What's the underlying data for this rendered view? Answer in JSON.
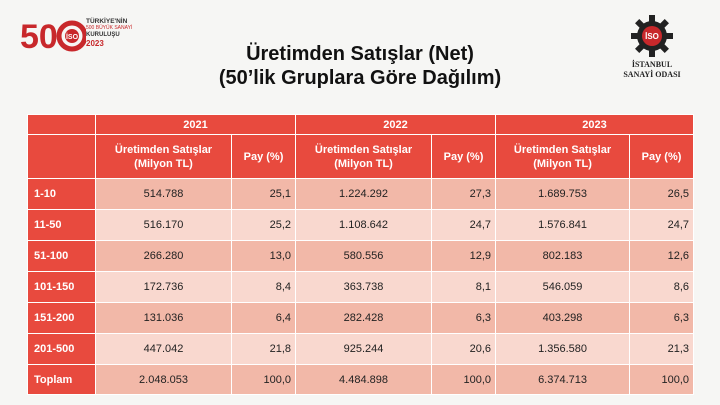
{
  "logo_left": {
    "number": "50",
    "line1": "TÜRKİYE'NİN",
    "line2": "500 BÜYÜK SANAYİ",
    "line3": "KURULUŞU",
    "year": "2023",
    "badge": "İSO"
  },
  "logo_right": {
    "badge": "İSO",
    "line1": "İSTANBUL",
    "line2": "SANAYİ ODASI"
  },
  "title": {
    "line1": "Üretimden Satışlar (Net)",
    "line2": "(50’lik Gruplara Göre Dağılım)"
  },
  "table": {
    "years": [
      "2021",
      "2022",
      "2023"
    ],
    "col_sales": "Üretimden Satışlar (Milyon TL)",
    "col_share": "Pay (%)",
    "rows": [
      {
        "group": "1-10",
        "v": [
          "514.788",
          "25,1",
          "1.224.292",
          "27,3",
          "1.689.753",
          "26,5"
        ]
      },
      {
        "group": "11-50",
        "v": [
          "516.170",
          "25,2",
          "1.108.642",
          "24,7",
          "1.576.841",
          "24,7"
        ]
      },
      {
        "group": "51-100",
        "v": [
          "266.280",
          "13,0",
          "580.556",
          "12,9",
          "802.183",
          "12,6"
        ]
      },
      {
        "group": "101-150",
        "v": [
          "172.736",
          "8,4",
          "363.738",
          "8,1",
          "546.059",
          "8,6"
        ]
      },
      {
        "group": "151-200",
        "v": [
          "131.036",
          "6,4",
          "282.428",
          "6,3",
          "403.298",
          "6,3"
        ]
      },
      {
        "group": "201-500",
        "v": [
          "447.042",
          "21,8",
          "925.244",
          "20,6",
          "1.356.580",
          "21,3"
        ]
      },
      {
        "group": "Toplam",
        "v": [
          "2.048.053",
          "100,0",
          "4.484.898",
          "100,0",
          "6.374.713",
          "100,0"
        ]
      }
    ]
  }
}
